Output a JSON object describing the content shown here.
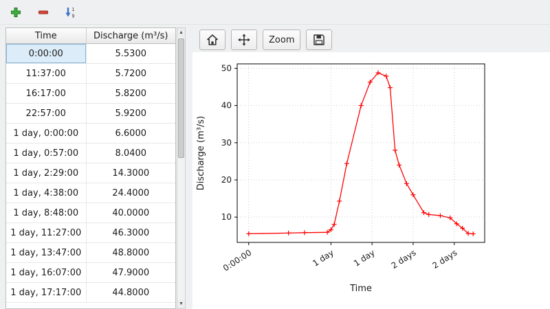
{
  "main_toolbar": {
    "add_icon": "add",
    "remove_icon": "remove",
    "sort_icon": "sort-ascending",
    "sort_top_digit": "1",
    "sort_bottom_digit": "9"
  },
  "table": {
    "columns": [
      "Time",
      "Discharge (m³/s)"
    ],
    "rows": [
      [
        "0:00:00",
        "5.5300"
      ],
      [
        "11:37:00",
        "5.7200"
      ],
      [
        "16:17:00",
        "5.8200"
      ],
      [
        "22:57:00",
        "5.9200"
      ],
      [
        "1 day, 0:00:00",
        "6.6000"
      ],
      [
        "1 day, 0:57:00",
        "8.0400"
      ],
      [
        "1 day, 2:29:00",
        "14.3000"
      ],
      [
        "1 day, 4:38:00",
        "24.4000"
      ],
      [
        "1 day, 8:48:00",
        "40.0000"
      ],
      [
        "1 day, 11:27:00",
        "46.3000"
      ],
      [
        "1 day, 13:47:00",
        "48.8000"
      ],
      [
        "1 day, 16:07:00",
        "47.9000"
      ],
      [
        "1 day, 17:17:00",
        "44.8000"
      ]
    ],
    "selected": {
      "row": 0,
      "col": 0
    }
  },
  "chart_toolbar": {
    "home_icon": "home",
    "pan_icon": "pan",
    "zoom_label": "Zoom",
    "save_icon": "save"
  },
  "chart_data": {
    "type": "line",
    "title": "",
    "xlabel": "Time",
    "ylabel": "Discharge (m³/s)",
    "line_color": "#ff0000",
    "marker": "+",
    "grid": true,
    "xlim": [
      -0.14,
      2.87
    ],
    "ylim": [
      3.2,
      51.2
    ],
    "xticks": {
      "positions": [
        0,
        1,
        1.5,
        2,
        2.5
      ],
      "labels": [
        "0:00:00",
        "1 day",
        "1 day",
        "2 days",
        "2 days"
      ]
    },
    "yticks": [
      10,
      20,
      30,
      40,
      50
    ],
    "x_days": [
      0,
      0.484,
      0.679,
      0.956,
      1.0,
      1.04,
      1.103,
      1.193,
      1.367,
      1.477,
      1.574,
      1.672,
      1.72,
      1.78,
      1.83,
      1.92,
      2.0,
      2.13,
      2.19,
      2.33,
      2.45,
      2.53,
      2.6,
      2.67,
      2.73
    ],
    "y_values": [
      5.53,
      5.72,
      5.82,
      5.92,
      6.6,
      8.04,
      14.3,
      24.4,
      40.0,
      46.3,
      48.8,
      47.9,
      44.8,
      28.0,
      24.0,
      19.0,
      16.0,
      11.2,
      10.7,
      10.4,
      9.8,
      8.2,
      7.0,
      5.6,
      5.5
    ]
  }
}
